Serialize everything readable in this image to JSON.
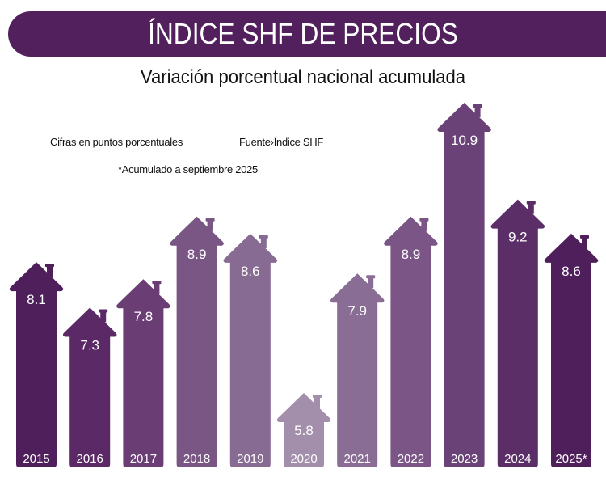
{
  "header": {
    "title": "ÍNDICE SHF DE PRECIOS",
    "subtitle": "Variación porcentual nacional acumulada"
  },
  "notes": {
    "units": "Cifras en puntos porcentuales",
    "source": "Fuente›Índice SHF",
    "footnote": "*Acumulado a septiembre 2025"
  },
  "chart_data": {
    "type": "bar",
    "title": "ÍNDICE SHF DE PRECIOS",
    "subtitle": "Variación porcentual nacional acumulada",
    "categories": [
      "2015",
      "2016",
      "2017",
      "2018",
      "2019",
      "2020",
      "2021",
      "2022",
      "2023",
      "2024",
      "2025*"
    ],
    "values": [
      8.1,
      7.3,
      7.8,
      8.9,
      8.6,
      5.8,
      7.9,
      8.9,
      10.9,
      9.2,
      8.6
    ],
    "value_labels": [
      "8.1",
      "7.3",
      "7.8",
      "8.9",
      "8.6",
      "5.8",
      "7.9",
      "8.9",
      "10.9",
      "9.2",
      "8.6"
    ],
    "colors": [
      "#4f1f5c",
      "#5a2966",
      "#6a3d75",
      "#7a5685",
      "#876b92",
      "#a38fac",
      "#8a6d95",
      "#7a5586",
      "#6b4277",
      "#5b2e68",
      "#4f1f5c"
    ],
    "bar_shape": "house-arrow",
    "grid": false,
    "xlabel": "",
    "ylabel": ""
  }
}
